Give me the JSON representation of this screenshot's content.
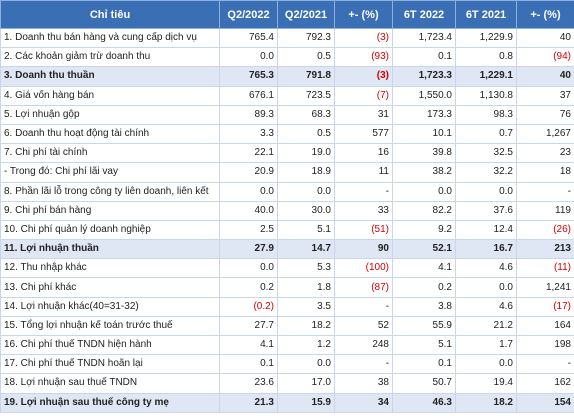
{
  "table": {
    "headers": [
      "Chỉ tiêu",
      "Q2/2022",
      "Q2/2021",
      "+- (%)",
      "6T 2022",
      "6T 2021",
      "+- (%)"
    ],
    "rows": [
      {
        "label": "1. Doanh thu bán hàng và cung cấp dịch vụ",
        "q2_2022": "765.4",
        "q2_2021": "792.3",
        "chg_q": "(3)",
        "h1_2022": "1,723.4",
        "h1_2021": "1,229.9",
        "chg_h": "40",
        "highlight": false
      },
      {
        "label": "2. Các khoản giảm trừ doanh thu",
        "q2_2022": "0.0",
        "q2_2021": "0.5",
        "chg_q": "(93)",
        "h1_2022": "0.1",
        "h1_2021": "0.8",
        "chg_h": "(94)",
        "highlight": false
      },
      {
        "label": "3. Doanh thu thuần",
        "q2_2022": "765.3",
        "q2_2021": "791.8",
        "chg_q": "(3)",
        "h1_2022": "1,723.3",
        "h1_2021": "1,229.1",
        "chg_h": "40",
        "highlight": true
      },
      {
        "label": "4. Giá vốn hàng bán",
        "q2_2022": "676.1",
        "q2_2021": "723.5",
        "chg_q": "(7)",
        "h1_2022": "1,550.0",
        "h1_2021": "1,130.8",
        "chg_h": "37",
        "highlight": false
      },
      {
        "label": "5. Lợi nhuận gộp",
        "q2_2022": "89.3",
        "q2_2021": "68.3",
        "chg_q": "31",
        "h1_2022": "173.3",
        "h1_2021": "98.3",
        "chg_h": "76",
        "highlight": false
      },
      {
        "label": "6. Doanh thu hoạt động tài chính",
        "q2_2022": "3.3",
        "q2_2021": "0.5",
        "chg_q": "577",
        "h1_2022": "10.1",
        "h1_2021": "0.7",
        "chg_h": "1,267",
        "highlight": false
      },
      {
        "label": "7. Chi phí tài chính",
        "q2_2022": "22.1",
        "q2_2021": "19.0",
        "chg_q": "16",
        "h1_2022": "39.8",
        "h1_2021": "32.5",
        "chg_h": "23",
        "highlight": false
      },
      {
        "label": "- Trong đó: Chi phí lãi vay",
        "q2_2022": "20.9",
        "q2_2021": "18.9",
        "chg_q": "11",
        "h1_2022": "38.2",
        "h1_2021": "32.2",
        "chg_h": "18",
        "highlight": false
      },
      {
        "label": "8. Phần lãi lỗ trong công ty liên doanh, liên kết",
        "q2_2022": "0.0",
        "q2_2021": "0.0",
        "chg_q": "-",
        "h1_2022": "0.0",
        "h1_2021": "0.0",
        "chg_h": "-",
        "highlight": false
      },
      {
        "label": "9. Chi phí bán hàng",
        "q2_2022": "40.0",
        "q2_2021": "30.0",
        "chg_q": "33",
        "h1_2022": "82.2",
        "h1_2021": "37.6",
        "chg_h": "119",
        "highlight": false
      },
      {
        "label": "10. Chi phí quản lý doanh nghiệp",
        "q2_2022": "2.5",
        "q2_2021": "5.1",
        "chg_q": "(51)",
        "h1_2022": "9.2",
        "h1_2021": "12.4",
        "chg_h": "(26)",
        "highlight": false
      },
      {
        "label": "11. Lợi nhuận thuần",
        "q2_2022": "27.9",
        "q2_2021": "14.7",
        "chg_q": "90",
        "h1_2022": "52.1",
        "h1_2021": "16.7",
        "chg_h": "213",
        "highlight": true
      },
      {
        "label": "12. Thu nhập khác",
        "q2_2022": "0.0",
        "q2_2021": "5.3",
        "chg_q": "(100)",
        "h1_2022": "4.1",
        "h1_2021": "4.6",
        "chg_h": "(11)",
        "highlight": false
      },
      {
        "label": "13. Chi phí khác",
        "q2_2022": "0.2",
        "q2_2021": "1.8",
        "chg_q": "(87)",
        "h1_2022": "0.2",
        "h1_2021": "0.0",
        "chg_h": "1,241",
        "highlight": false
      },
      {
        "label": "14. Lợi nhuận khác(40=31-32)",
        "q2_2022": "(0.2)",
        "q2_2021": "3.5",
        "chg_q": "-",
        "h1_2022": "3.8",
        "h1_2021": "4.6",
        "chg_h": "(17)",
        "highlight": false
      },
      {
        "label": "15. Tổng lợi nhuận kế toán trước thuế",
        "q2_2022": "27.7",
        "q2_2021": "18.2",
        "chg_q": "52",
        "h1_2022": "55.9",
        "h1_2021": "21.2",
        "chg_h": "164",
        "highlight": false
      },
      {
        "label": "16. Chi phí thuế TNDN hiện hành",
        "q2_2022": "4.1",
        "q2_2021": "1.2",
        "chg_q": "248",
        "h1_2022": "5.1",
        "h1_2021": "1.7",
        "chg_h": "198",
        "highlight": false
      },
      {
        "label": "17. Chi phí thuế TNDN hoãn lại",
        "q2_2022": "0.1",
        "q2_2021": "0.0",
        "chg_q": "-",
        "h1_2022": "0.1",
        "h1_2021": "0.0",
        "chg_h": "-",
        "highlight": false
      },
      {
        "label": "18. Lợi nhuận sau thuế TNDN",
        "q2_2022": "23.6",
        "q2_2021": "17.0",
        "chg_q": "38",
        "h1_2022": "50.7",
        "h1_2021": "19.4",
        "chg_h": "162",
        "highlight": false
      },
      {
        "label": "19. Lợi nhuận sau thuế công ty mẹ",
        "q2_2022": "21.3",
        "q2_2021": "15.9",
        "chg_q": "34",
        "h1_2022": "46.3",
        "h1_2021": "18.2",
        "chg_h": "154",
        "highlight": true
      }
    ]
  },
  "colors": {
    "header_bg": "#3a6fb6",
    "highlight_row_bg": "#dfe7f5",
    "negative_text": "#d40000"
  }
}
